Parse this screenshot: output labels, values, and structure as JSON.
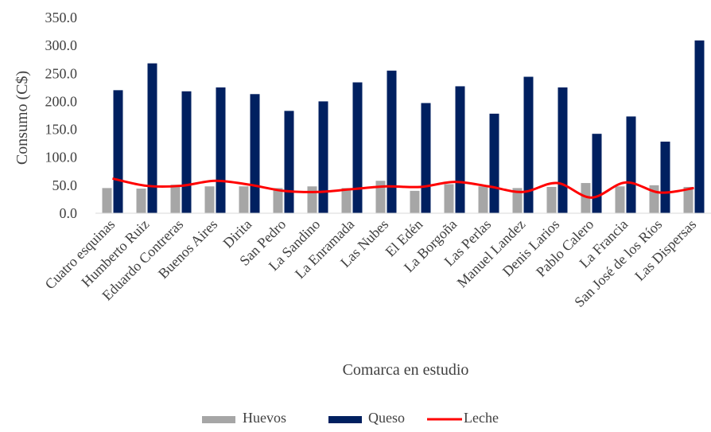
{
  "chart_data": {
    "type": "bar",
    "title": "",
    "xlabel": "Comarca en estudio",
    "ylabel": "Consumo (C$)",
    "ylim": [
      0,
      350
    ],
    "yticks": [
      "0.0",
      "50.0",
      "100.0",
      "150.0",
      "200.0",
      "250.0",
      "300.0",
      "350.0"
    ],
    "grid": false,
    "legend_position": "bottom",
    "categories": [
      "Cuatro esquinas",
      "Humberto Ruiz",
      "Eduardo Contreras",
      "Buenos Aires",
      "Dirita",
      "San Pedro",
      "La Sandino",
      "La Enramada",
      "Las Nubes",
      "El Edén",
      "La Borgoña",
      "Las Perlas",
      "Manuel Landez",
      "Denis Larios",
      "Pablo Calero",
      "La Francia",
      "San José de los Ríos",
      "Las Dispersas"
    ],
    "series": [
      {
        "name": "Huevos",
        "type": "bar",
        "color": "#a6a6a6",
        "values": [
          45,
          44,
          51,
          48,
          48,
          45,
          48,
          45,
          58,
          40,
          52,
          48,
          45,
          47,
          54,
          48,
          50,
          47
        ]
      },
      {
        "name": "Queso",
        "type": "bar",
        "color": "#002060",
        "values": [
          220,
          268,
          218,
          225,
          213,
          183,
          200,
          234,
          255,
          197,
          227,
          178,
          244,
          225,
          142,
          173,
          128,
          309
        ]
      },
      {
        "name": "Leche",
        "type": "line",
        "color": "#ff0000",
        "values": [
          62,
          49,
          49,
          58,
          51,
          40,
          38,
          43,
          48,
          47,
          56,
          48,
          38,
          54,
          28,
          55,
          37,
          45
        ]
      }
    ]
  }
}
